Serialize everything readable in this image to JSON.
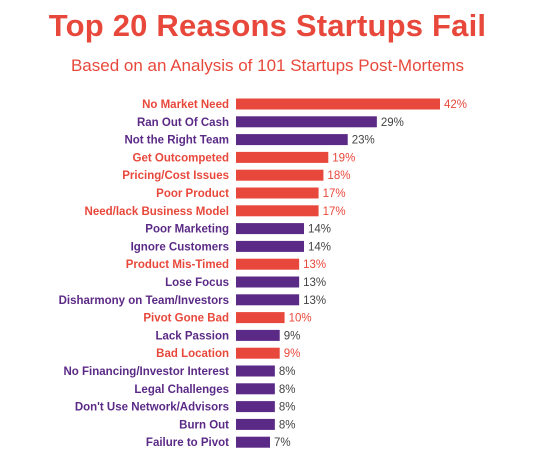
{
  "chart_data": {
    "type": "bar",
    "orientation": "horizontal",
    "title": "Top 20 Reasons Startups Fail",
    "subtitle": "Based on an Analysis of 101 Startups Post-Mortems",
    "unit": "%",
    "xlim": [
      0,
      42
    ],
    "grid": false,
    "legend": "none",
    "colors": {
      "red": "#e8483b",
      "purple": "#5b2a86"
    },
    "categories": [
      "No Market Need",
      "Ran Out Of Cash",
      "Not the Right Team",
      "Get Outcompeted",
      "Pricing/Cost Issues",
      "Poor Product",
      "Need/lack Business Model",
      "Poor Marketing",
      "Ignore Customers",
      "Product Mis-Timed",
      "Lose Focus",
      "Disharmony on Team/Investors",
      "Pivot Gone Bad",
      "Lack Passion",
      "Bad Location",
      "No Financing/Investor Interest",
      "Legal Challenges",
      "Don't Use Network/Advisors",
      "Burn Out",
      "Failure to Pivot"
    ],
    "values": [
      42,
      29,
      23,
      19,
      18,
      17,
      17,
      14,
      14,
      13,
      13,
      13,
      10,
      9,
      9,
      8,
      8,
      8,
      8,
      7
    ],
    "value_labels": [
      "42%",
      "29%",
      "23%",
      "19%",
      "18%",
      "17%",
      "17%",
      "14%",
      "14%",
      "13%",
      "13%",
      "13%",
      "10%",
      "9%",
      "9%",
      "8%",
      "8%",
      "8%",
      "8%",
      "7%"
    ],
    "bar_colors": [
      "red",
      "purple",
      "purple",
      "red",
      "red",
      "red",
      "red",
      "purple",
      "purple",
      "red",
      "purple",
      "purple",
      "red",
      "purple",
      "red",
      "purple",
      "purple",
      "purple",
      "purple",
      "purple"
    ]
  }
}
